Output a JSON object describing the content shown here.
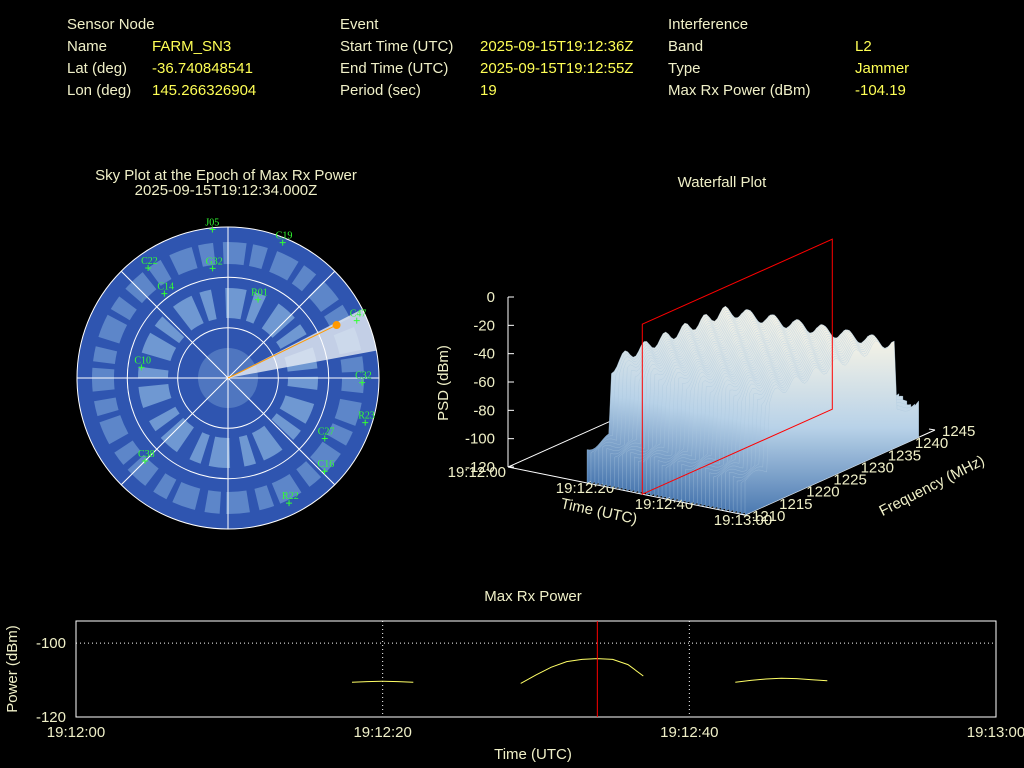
{
  "header": {
    "sensor": {
      "title": "Sensor Node",
      "rows": [
        [
          "Name",
          "FARM_SN3"
        ],
        [
          "Lat (deg)",
          "-36.740848541"
        ],
        [
          "Lon (deg)",
          "145.266326904"
        ]
      ]
    },
    "event": {
      "title": "Event",
      "rows": [
        [
          "Start Time (UTC)",
          "2025-09-15T19:12:36Z"
        ],
        [
          "End Time (UTC)",
          "2025-09-15T19:12:55Z"
        ],
        [
          "Period (sec)",
          "19"
        ]
      ]
    },
    "interference": {
      "title": "Interference",
      "rows": [
        [
          "Band",
          "L2"
        ],
        [
          "Type",
          "Jammer"
        ],
        [
          "Max Rx Power (dBm)",
          "-104.19"
        ]
      ]
    }
  },
  "sky_plot": {
    "title": "Sky Plot at the Epoch of Max Rx Power",
    "subtitle": "2025-09-15T19:12:34.000Z",
    "satellites": [
      {
        "label": "J05",
        "azimuth": 354,
        "elevation": 1
      },
      {
        "label": "C19",
        "azimuth": 22,
        "elevation": 3
      },
      {
        "label": "C22",
        "azimuth": 324,
        "elevation": 9
      },
      {
        "label": "G32",
        "azimuth": 352,
        "elevation": 24
      },
      {
        "label": "C47",
        "azimuth": 66,
        "elevation": 6
      },
      {
        "label": "C32",
        "azimuth": 92,
        "elevation": 10
      },
      {
        "label": "R23",
        "azimuth": 108,
        "elevation": 4
      },
      {
        "label": "C27",
        "azimuth": 122,
        "elevation": 22
      },
      {
        "label": "C16",
        "azimuth": 134,
        "elevation": 10
      },
      {
        "label": "R22",
        "azimuth": 154,
        "elevation": 7
      },
      {
        "label": "C38",
        "azimuth": 225,
        "elevation": 20
      },
      {
        "label": "C14",
        "azimuth": 323,
        "elevation": 27
      },
      {
        "label": "R01",
        "azimuth": 21,
        "elevation": 40
      },
      {
        "label": "C10",
        "azimuth": 277,
        "elevation": 38
      }
    ],
    "jammer": {
      "azimuth": 64,
      "elevation": 18
    }
  },
  "waterfall": {
    "title": "Waterfall Plot",
    "zlabel": "PSD (dBm)",
    "zlim": [
      -120,
      0
    ],
    "zticks": [
      0,
      -20,
      -40,
      -60,
      -80,
      -100,
      -120
    ],
    "xlabel": "Time (UTC)",
    "xlim": [
      "19:12:00",
      "19:13:00"
    ],
    "xticks": [
      "19:12:00",
      "19:12:20",
      "19:12:40",
      "19:13:00"
    ],
    "ylabel": "Frequency (MHz)",
    "ylim": [
      1210,
      1245
    ],
    "yticks": [
      1210,
      1215,
      1220,
      1225,
      1230,
      1235,
      1240,
      1245
    ]
  },
  "chart_data": {
    "type": "line",
    "title": "Max Rx Power",
    "xlabel": "Time (UTC)",
    "ylabel": "Power (dBm)",
    "x": [
      "19:12:18",
      "19:12:19",
      "19:12:20",
      "19:12:21",
      "19:12:22",
      "19:12:25",
      "19:12:29",
      "19:12:30",
      "19:12:31",
      "19:12:32",
      "19:12:33",
      "19:12:34",
      "19:12:35",
      "19:12:36",
      "19:12:37",
      "19:12:40",
      "19:12:43",
      "19:12:44",
      "19:12:45",
      "19:12:46",
      "19:12:47",
      "19:12:48",
      "19:12:49"
    ],
    "series": [
      {
        "name": "Max Rx Power",
        "color": "#ffff66",
        "values": [
          -110.6,
          -110.4,
          -110.3,
          -110.4,
          -110.6,
          null,
          -110.9,
          -108.6,
          -106.5,
          -105.0,
          -104.4,
          -104.19,
          -104.4,
          -105.8,
          -108.9,
          null,
          -110.6,
          -110.1,
          -109.7,
          -109.5,
          -109.6,
          -109.9,
          -110.2
        ]
      }
    ],
    "marker_x": "19:12:34",
    "marker_color": "#ff0000",
    "xlim": [
      "19:12:00",
      "19:13:00"
    ],
    "xticks": [
      "19:12:00",
      "19:12:20",
      "19:12:40",
      "19:13:00"
    ],
    "ylim": [
      -120,
      -94
    ],
    "yticks": [
      -100,
      -120
    ],
    "grid": true
  }
}
